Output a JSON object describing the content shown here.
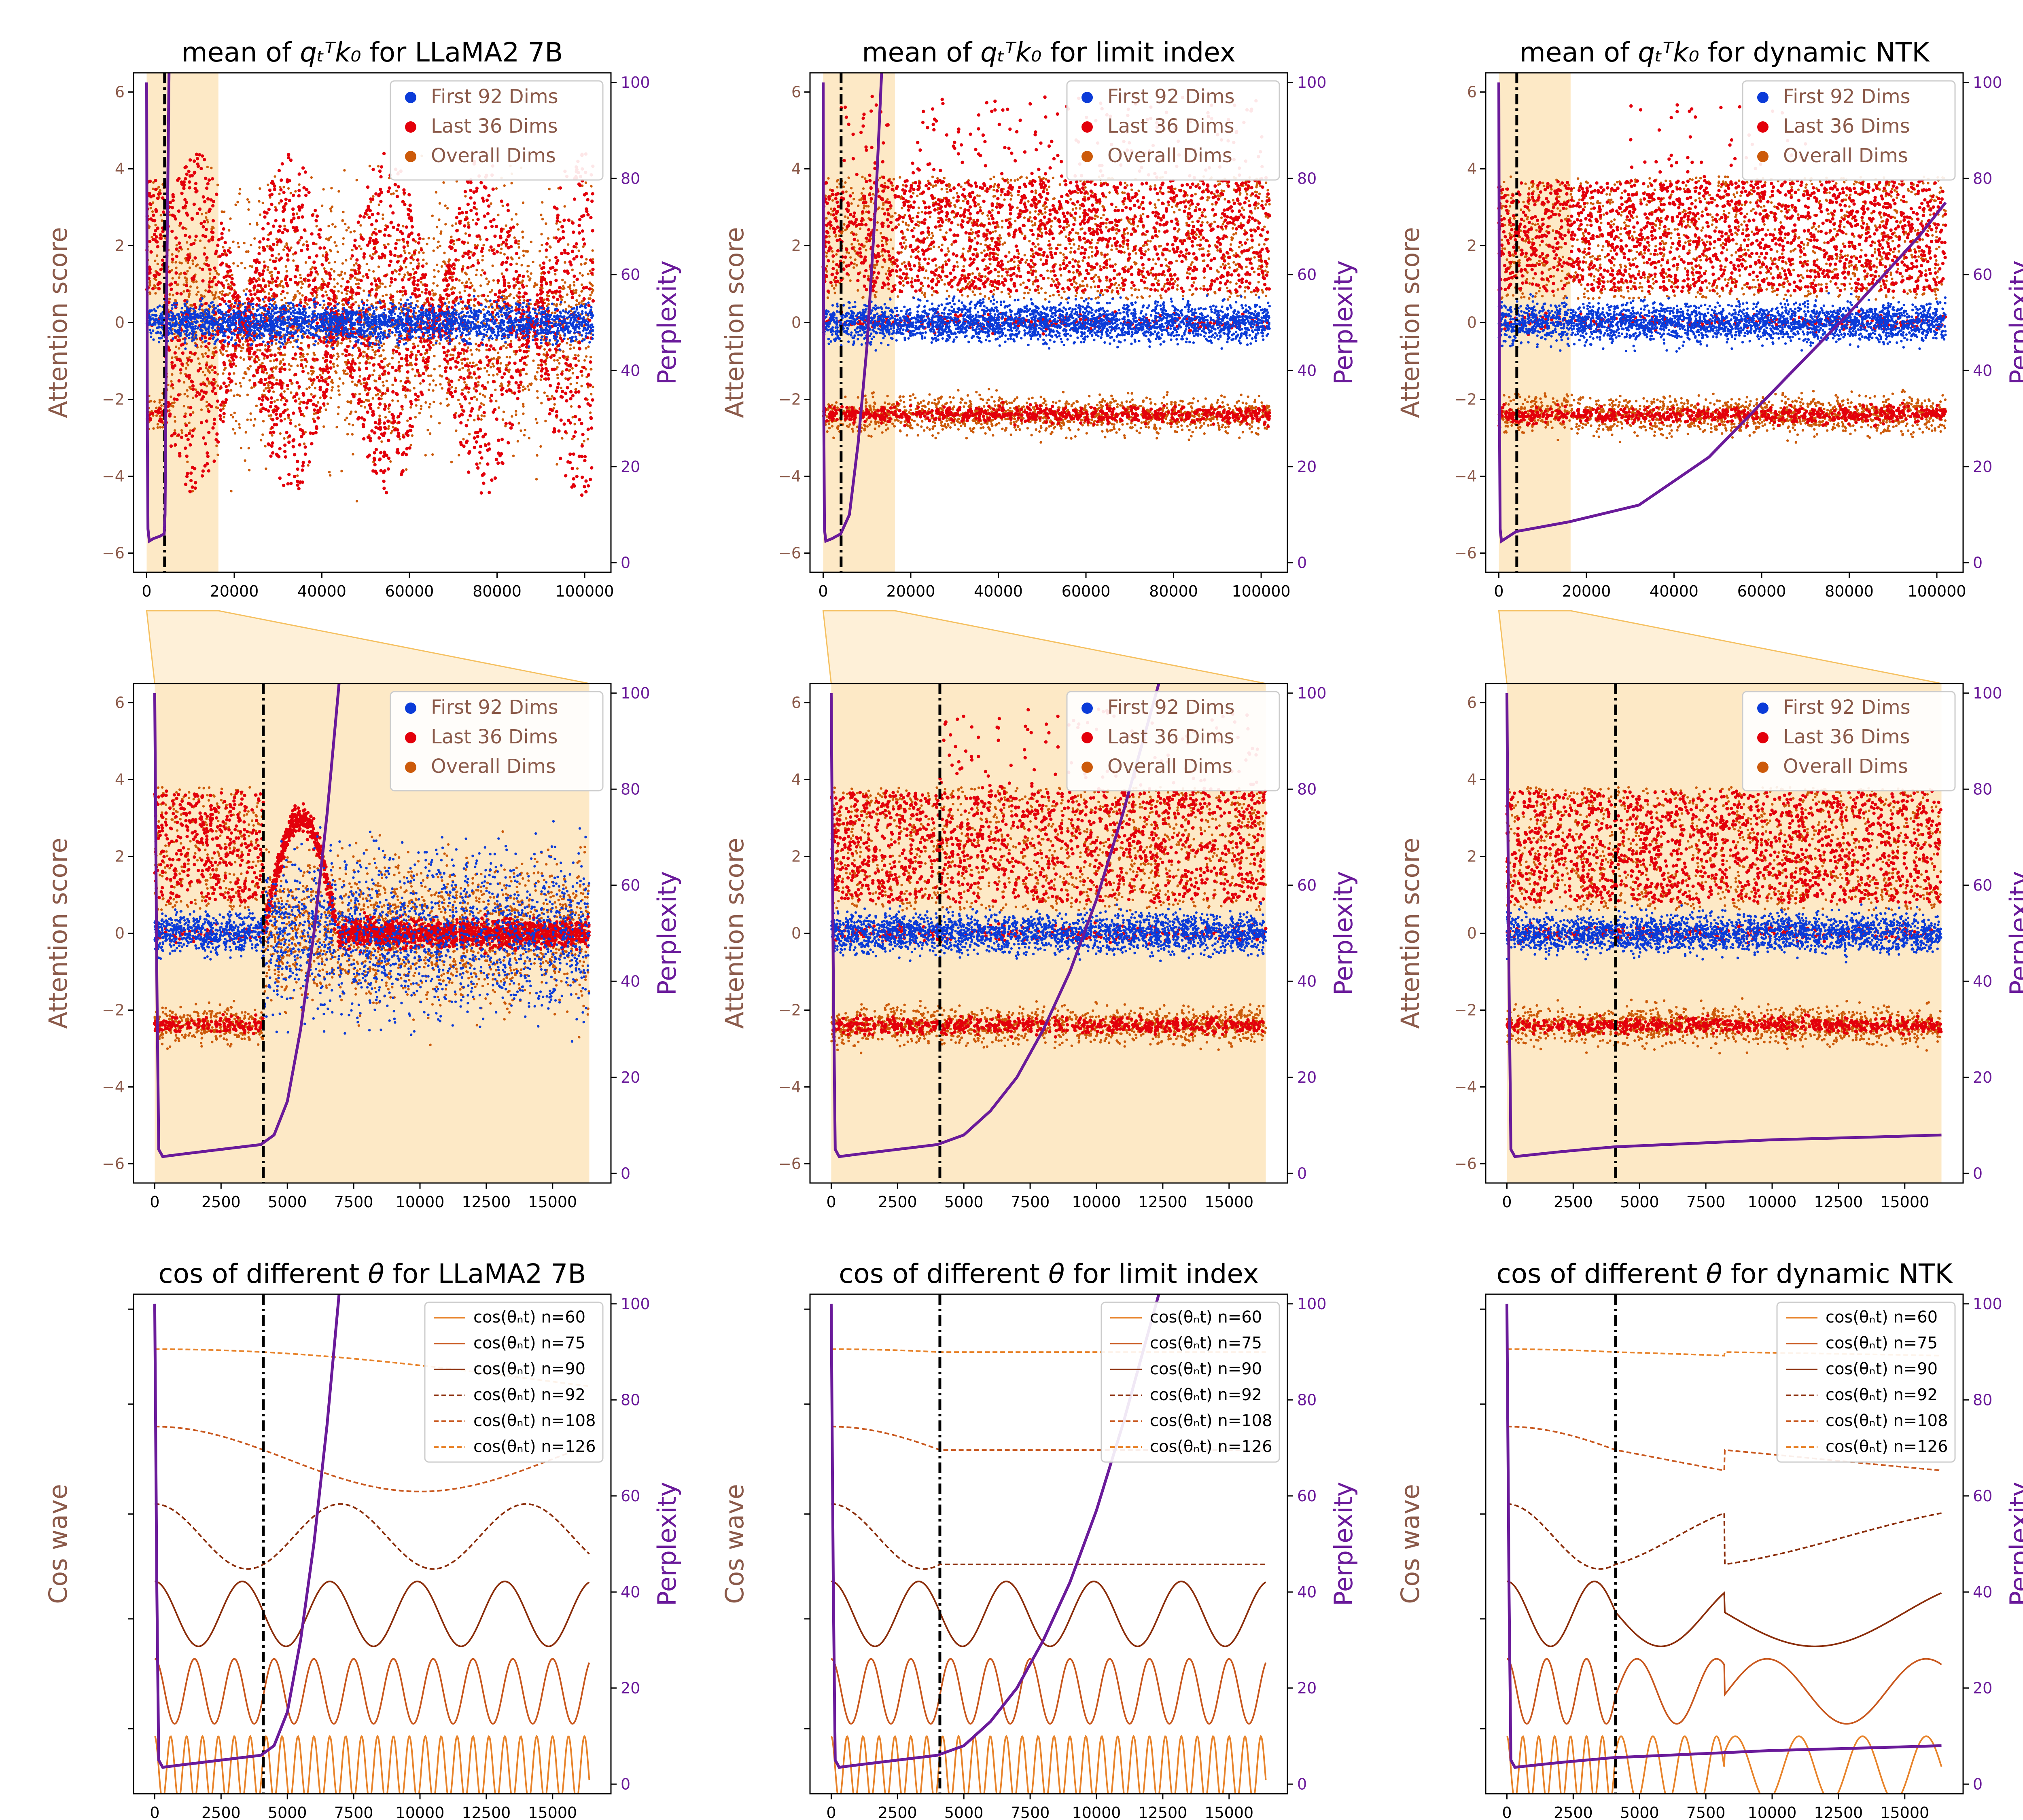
{
  "colors": {
    "first_dims": "#0b3bd8",
    "last_dims": "#e3000b",
    "overall_dims": "#cc5a0a",
    "perplexity": "#6a1a9a",
    "axis_label": "#8b5a4a",
    "window": "#fde4b8",
    "cos_colors": [
      "#e8832a",
      "#c9581e",
      "#8b2d0a",
      "#8b2d0a",
      "#c9581e",
      "#e8832a"
    ]
  },
  "chart_data": [
    {
      "id": "r1c1",
      "type": "scatter",
      "panel": "overview",
      "title_main": "mean of ",
      "title_math": "qₜᵀk₀",
      "title_suffix": " for LLaMA2 7B",
      "ylabel": "Attention score",
      "y2label": "Perplexity",
      "xlim": [
        -3000,
        106000
      ],
      "ylim": [
        -6.5,
        6.5
      ],
      "y2lim": [
        -2,
        102
      ],
      "xticks": [
        0,
        20000,
        40000,
        60000,
        80000,
        100000
      ],
      "yticks": [
        -6,
        -4,
        -2,
        0,
        2,
        4,
        6
      ],
      "y2ticks": [
        0,
        20,
        40,
        60,
        80,
        100
      ],
      "train_length": 4096,
      "window_end": 16384,
      "legend": [
        "First 92 Dims",
        "Last 36 Dims",
        "Overall Dims"
      ],
      "mode": "llama",
      "perplexity": [
        [
          0,
          100
        ],
        [
          150,
          30
        ],
        [
          300,
          7
        ],
        [
          600,
          4.5
        ],
        [
          1500,
          5
        ],
        [
          3000,
          5.5
        ],
        [
          4000,
          6
        ],
        [
          4200,
          10
        ],
        [
          4600,
          60
        ],
        [
          5200,
          110
        ]
      ]
    },
    {
      "id": "r1c2",
      "type": "scatter",
      "panel": "overview",
      "title_main": "mean of ",
      "title_math": "qₜᵀk₀",
      "title_suffix": " for limit index",
      "ylabel": "Attention score",
      "y2label": "Perplexity",
      "xlim": [
        -3000,
        106000
      ],
      "ylim": [
        -6.5,
        6.5
      ],
      "y2lim": [
        -2,
        102
      ],
      "xticks": [
        0,
        20000,
        40000,
        60000,
        80000,
        100000
      ],
      "yticks": [
        -6,
        -4,
        -2,
        0,
        2,
        4,
        6
      ],
      "y2ticks": [
        0,
        20,
        40,
        60,
        80,
        100
      ],
      "train_length": 4096,
      "window_end": 16384,
      "legend": [
        "First 92 Dims",
        "Last 36 Dims",
        "Overall Dims"
      ],
      "mode": "limit",
      "perplexity": [
        [
          0,
          100
        ],
        [
          150,
          30
        ],
        [
          300,
          7
        ],
        [
          600,
          4.5
        ],
        [
          2000,
          5
        ],
        [
          4000,
          6
        ],
        [
          6000,
          10
        ],
        [
          8000,
          25
        ],
        [
          10000,
          45
        ],
        [
          12000,
          75
        ],
        [
          13500,
          105
        ]
      ]
    },
    {
      "id": "r1c3",
      "type": "scatter",
      "panel": "overview",
      "title_main": "mean of ",
      "title_math": "qₜᵀk₀",
      "title_suffix": " for dynamic NTK",
      "ylabel": "Attention score",
      "y2label": "Perplexity",
      "xlim": [
        -3000,
        106000
      ],
      "ylim": [
        -6.5,
        6.5
      ],
      "y2lim": [
        -2,
        102
      ],
      "xticks": [
        0,
        20000,
        40000,
        60000,
        80000,
        100000
      ],
      "yticks": [
        -6,
        -4,
        -2,
        0,
        2,
        4,
        6
      ],
      "y2ticks": [
        0,
        20,
        40,
        60,
        80,
        100
      ],
      "train_length": 4096,
      "window_end": 16384,
      "legend": [
        "First 92 Dims",
        "Last 36 Dims",
        "Overall Dims"
      ],
      "mode": "ntk",
      "perplexity": [
        [
          0,
          100
        ],
        [
          150,
          30
        ],
        [
          300,
          7
        ],
        [
          600,
          4.5
        ],
        [
          4000,
          6.5
        ],
        [
          16000,
          8.5
        ],
        [
          32000,
          12
        ],
        [
          48000,
          22
        ],
        [
          64000,
          37
        ],
        [
          80000,
          52
        ],
        [
          96000,
          68
        ],
        [
          102000,
          75
        ]
      ]
    },
    {
      "id": "r2c1",
      "type": "scatter",
      "panel": "zoom",
      "title_main": "",
      "title_math": "",
      "title_suffix": "",
      "ylabel": "Attention score",
      "y2label": "Perplexity",
      "xlim": [
        -800,
        17200
      ],
      "ylim": [
        -6.5,
        6.5
      ],
      "y2lim": [
        -2,
        102
      ],
      "xticks": [
        0,
        2500,
        5000,
        7500,
        10000,
        12500,
        15000
      ],
      "yticks": [
        -6,
        -4,
        -2,
        0,
        2,
        4,
        6
      ],
      "y2ticks": [
        0,
        20,
        40,
        60,
        80,
        100
      ],
      "train_length": 4096,
      "window_end": 16384,
      "legend": [
        "First 92 Dims",
        "Last 36 Dims",
        "Overall Dims"
      ],
      "mode": "llama",
      "perplexity": [
        [
          0,
          100
        ],
        [
          80,
          40
        ],
        [
          150,
          5
        ],
        [
          300,
          3.5
        ],
        [
          1000,
          4
        ],
        [
          2500,
          5
        ],
        [
          4000,
          6
        ],
        [
          4500,
          8
        ],
        [
          5000,
          15
        ],
        [
          5500,
          30
        ],
        [
          6000,
          50
        ],
        [
          6500,
          75
        ],
        [
          7000,
          105
        ]
      ]
    },
    {
      "id": "r2c2",
      "type": "scatter",
      "panel": "zoom",
      "title_main": "",
      "title_math": "",
      "title_suffix": "",
      "ylabel": "Attention score",
      "y2label": "Perplexity",
      "xlim": [
        -800,
        17200
      ],
      "ylim": [
        -6.5,
        6.5
      ],
      "y2lim": [
        -2,
        102
      ],
      "xticks": [
        0,
        2500,
        5000,
        7500,
        10000,
        12500,
        15000
      ],
      "yticks": [
        -6,
        -4,
        -2,
        0,
        2,
        4,
        6
      ],
      "y2ticks": [
        0,
        20,
        40,
        60,
        80,
        100
      ],
      "train_length": 4096,
      "window_end": 16384,
      "legend": [
        "First 92 Dims",
        "Last 36 Dims",
        "Overall Dims"
      ],
      "mode": "limit",
      "perplexity": [
        [
          0,
          100
        ],
        [
          80,
          40
        ],
        [
          150,
          5
        ],
        [
          300,
          3.5
        ],
        [
          1000,
          4
        ],
        [
          2500,
          5
        ],
        [
          4000,
          6
        ],
        [
          5000,
          8
        ],
        [
          6000,
          13
        ],
        [
          7000,
          20
        ],
        [
          8000,
          30
        ],
        [
          9000,
          42
        ],
        [
          10000,
          57
        ],
        [
          11000,
          75
        ],
        [
          12000,
          95
        ],
        [
          12500,
          105
        ]
      ]
    },
    {
      "id": "r2c3",
      "type": "scatter",
      "panel": "zoom",
      "title_main": "",
      "title_math": "",
      "title_suffix": "",
      "ylabel": "Attention score",
      "y2label": "Perplexity",
      "xlim": [
        -800,
        17200
      ],
      "ylim": [
        -6.5,
        6.5
      ],
      "y2lim": [
        -2,
        102
      ],
      "xticks": [
        0,
        2500,
        5000,
        7500,
        10000,
        12500,
        15000
      ],
      "yticks": [
        -6,
        -4,
        -2,
        0,
        2,
        4,
        6
      ],
      "y2ticks": [
        0,
        20,
        40,
        60,
        80,
        100
      ],
      "train_length": 4096,
      "window_end": 16384,
      "legend": [
        "First 92 Dims",
        "Last 36 Dims",
        "Overall Dims"
      ],
      "mode": "ntk",
      "perplexity": [
        [
          0,
          100
        ],
        [
          80,
          40
        ],
        [
          150,
          5
        ],
        [
          300,
          3.5
        ],
        [
          2000,
          4.5
        ],
        [
          4000,
          5.5
        ],
        [
          6000,
          6
        ],
        [
          8000,
          6.5
        ],
        [
          10000,
          7
        ],
        [
          12000,
          7.3
        ],
        [
          14000,
          7.6
        ],
        [
          16384,
          8
        ]
      ]
    },
    {
      "id": "r3c1",
      "type": "line",
      "panel": "cos",
      "title_main": "cos of different ",
      "title_math": "θ",
      "title_suffix": " for LLaMA2 7B",
      "ylabel": "Cos wave",
      "y2label": "Perplexity",
      "xlim": [
        -800,
        17200
      ],
      "ylim": [
        0,
        1
      ],
      "y2lim": [
        -2,
        102
      ],
      "xticks": [
        0,
        2500,
        5000,
        7500,
        10000,
        12500,
        15000
      ],
      "yticks": [],
      "y2ticks": [
        0,
        20,
        40,
        60,
        80,
        100
      ],
      "train_length": 4096,
      "legend": [
        "cos(θₙt) n=60",
        "cos(θₙt) n=75",
        "cos(θₙt) n=90",
        "cos(θₙt) n=92",
        "cos(θₙt) n=108",
        "cos(θₙt) n=126"
      ],
      "mode": "llama",
      "perplexity": [
        [
          0,
          100
        ],
        [
          80,
          40
        ],
        [
          150,
          5
        ],
        [
          300,
          3.5
        ],
        [
          1000,
          4
        ],
        [
          2500,
          5
        ],
        [
          4000,
          6
        ],
        [
          4500,
          8
        ],
        [
          5000,
          15
        ],
        [
          5500,
          30
        ],
        [
          6000,
          50
        ],
        [
          6500,
          75
        ],
        [
          7000,
          105
        ]
      ]
    },
    {
      "id": "r3c2",
      "type": "line",
      "panel": "cos",
      "title_main": "cos of different ",
      "title_math": "θ",
      "title_suffix": " for limit index",
      "ylabel": "Cos wave",
      "y2label": "Perplexity",
      "xlim": [
        -800,
        17200
      ],
      "ylim": [
        0,
        1
      ],
      "y2lim": [
        -2,
        102
      ],
      "xticks": [
        0,
        2500,
        5000,
        7500,
        10000,
        12500,
        15000
      ],
      "yticks": [],
      "y2ticks": [
        0,
        20,
        40,
        60,
        80,
        100
      ],
      "train_length": 4096,
      "legend": [
        "cos(θₙt) n=60",
        "cos(θₙt) n=75",
        "cos(θₙt) n=90",
        "cos(θₙt) n=92",
        "cos(θₙt) n=108",
        "cos(θₙt) n=126"
      ],
      "mode": "limit",
      "perplexity": [
        [
          0,
          100
        ],
        [
          80,
          40
        ],
        [
          150,
          5
        ],
        [
          300,
          3.5
        ],
        [
          1000,
          4
        ],
        [
          2500,
          5
        ],
        [
          4000,
          6
        ],
        [
          5000,
          8
        ],
        [
          6000,
          13
        ],
        [
          7000,
          20
        ],
        [
          8000,
          30
        ],
        [
          9000,
          42
        ],
        [
          10000,
          57
        ],
        [
          11000,
          75
        ],
        [
          12000,
          95
        ],
        [
          12500,
          105
        ]
      ]
    },
    {
      "id": "r3c3",
      "type": "line",
      "panel": "cos",
      "title_main": "cos of different ",
      "title_math": "θ",
      "title_suffix": " for dynamic NTK",
      "ylabel": "Cos wave",
      "y2label": "Perplexity",
      "xlim": [
        -800,
        17200
      ],
      "ylim": [
        0,
        1
      ],
      "y2lim": [
        -2,
        102
      ],
      "xticks": [
        0,
        2500,
        5000,
        7500,
        10000,
        12500,
        15000
      ],
      "yticks": [],
      "y2ticks": [
        0,
        20,
        40,
        60,
        80,
        100
      ],
      "train_length": 4096,
      "legend": [
        "cos(θₙt) n=60",
        "cos(θₙt) n=75",
        "cos(θₙt) n=90",
        "cos(θₙt) n=92",
        "cos(θₙt) n=108",
        "cos(θₙt) n=126"
      ],
      "mode": "ntk",
      "perplexity": [
        [
          0,
          100
        ],
        [
          80,
          40
        ],
        [
          150,
          5
        ],
        [
          300,
          3.5
        ],
        [
          2000,
          4.5
        ],
        [
          4000,
          5.5
        ],
        [
          6000,
          6
        ],
        [
          8000,
          6.5
        ],
        [
          10000,
          7
        ],
        [
          12000,
          7.3
        ],
        [
          14000,
          7.6
        ],
        [
          16384,
          8
        ]
      ]
    }
  ]
}
